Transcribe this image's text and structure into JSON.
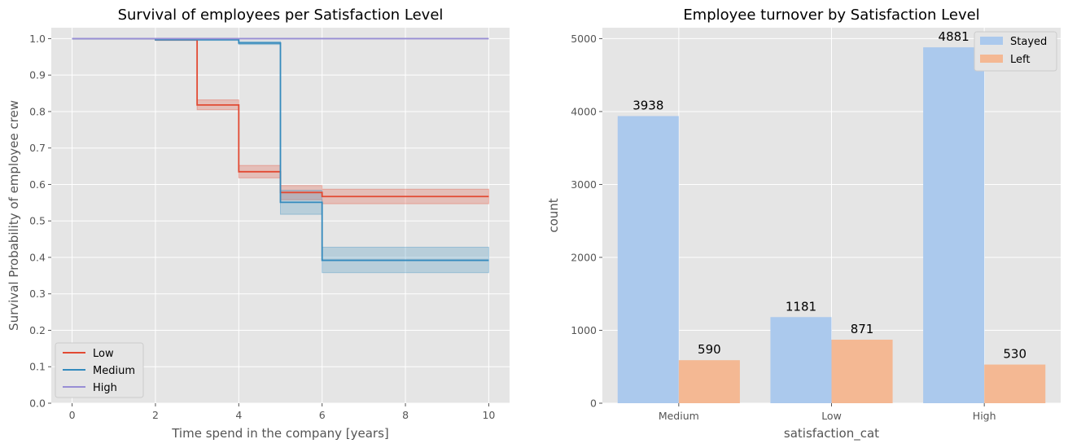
{
  "chart_data": [
    {
      "type": "line",
      "title": "Survival of employees per Satisfaction Level",
      "xlabel": "Time spend in the company [years]",
      "ylabel": "Survival Probability of employee crew",
      "xlim": [
        -0.5,
        10.5
      ],
      "ylim": [
        0.0,
        1.03
      ],
      "xticks": [
        "0",
        "2",
        "4",
        "6",
        "8",
        "10"
      ],
      "yticks": [
        "0.0",
        "0.1",
        "0.2",
        "0.3",
        "0.4",
        "0.5",
        "0.6",
        "0.7",
        "0.8",
        "0.9",
        "1.0"
      ],
      "grid": true,
      "legend": "lower-left",
      "series": [
        {
          "name": "Low",
          "color": "#e24a33",
          "step_x": [
            0,
            2,
            3,
            4,
            5,
            6,
            10
          ],
          "step_y": [
            1.0,
            0.997,
            0.818,
            0.635,
            0.578,
            0.567,
            0.567
          ],
          "ci_low": [
            1.0,
            0.995,
            0.805,
            0.618,
            0.558,
            0.547,
            0.547
          ],
          "ci_high": [
            1.0,
            0.999,
            0.832,
            0.652,
            0.597,
            0.587,
            0.587
          ]
        },
        {
          "name": "Medium",
          "color": "#348abd",
          "step_x": [
            0,
            2,
            4,
            5,
            6,
            10
          ],
          "step_y": [
            1.0,
            0.997,
            0.988,
            0.551,
            0.392,
            0.392
          ],
          "ci_low": [
            1.0,
            0.995,
            0.984,
            0.518,
            0.358,
            0.358
          ],
          "ci_high": [
            1.0,
            0.999,
            0.992,
            0.584,
            0.428,
            0.428
          ]
        },
        {
          "name": "High",
          "color": "#988ed5",
          "step_x": [
            0,
            10
          ],
          "step_y": [
            1.0,
            1.0
          ],
          "ci_low": [
            1.0,
            1.0
          ],
          "ci_high": [
            1.0,
            1.0
          ]
        }
      ]
    },
    {
      "type": "bar",
      "title": "Employee turnover by Satisfaction Level",
      "xlabel": "satisfaction_cat",
      "ylabel": "count",
      "categories": [
        "Medium",
        "Low",
        "High"
      ],
      "ylim": [
        0,
        5150
      ],
      "yticks": [
        "0",
        "1000",
        "2000",
        "3000",
        "4000",
        "5000"
      ],
      "grid": true,
      "legend": "top-right",
      "series": [
        {
          "name": "Stayed",
          "color": "#abc9ed",
          "values": [
            3938,
            1181,
            4881
          ]
        },
        {
          "name": "Left",
          "color": "#f4b893",
          "values": [
            590,
            871,
            530
          ]
        }
      ]
    }
  ]
}
